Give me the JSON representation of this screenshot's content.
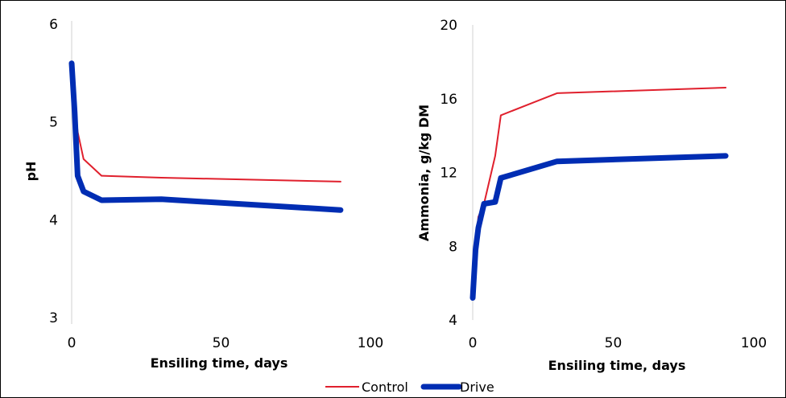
{
  "chart_data": [
    {
      "type": "line",
      "xlabel": "Ensiling time, days",
      "ylabel": "pH",
      "xlim": [
        0,
        100
      ],
      "ylim": [
        3,
        6
      ],
      "xticks": [
        0,
        50,
        100
      ],
      "yticks": [
        3,
        4,
        5,
        6
      ],
      "series": [
        {
          "name": "Control",
          "color": "#e0202d",
          "x": [
            0,
            1,
            2,
            4,
            10,
            30,
            90
          ],
          "y": [
            5.6,
            5.2,
            4.9,
            4.62,
            4.45,
            4.43,
            4.39
          ]
        },
        {
          "name": "Drive",
          "color": "#002db3",
          "x": [
            0,
            1,
            2,
            4,
            10,
            30,
            90
          ],
          "y": [
            5.6,
            5.1,
            4.45,
            4.29,
            4.2,
            4.21,
            4.1
          ]
        }
      ]
    },
    {
      "type": "line",
      "xlabel": "Ensiling time, days",
      "ylabel": "Ammonia, g/kg DM",
      "xlim": [
        0,
        100
      ],
      "ylim": [
        4,
        20
      ],
      "xticks": [
        0,
        50,
        100
      ],
      "yticks": [
        4,
        8,
        12,
        16,
        20
      ],
      "series": [
        {
          "name": "Control",
          "color": "#e0202d",
          "x": [
            0,
            1,
            2,
            4,
            8,
            10,
            30,
            90
          ],
          "y": [
            5.2,
            8.0,
            9.6,
            10.3,
            12.9,
            15.1,
            16.3,
            16.6
          ]
        },
        {
          "name": "Drive",
          "color": "#002db3",
          "x": [
            0,
            1,
            2,
            4,
            8,
            10,
            30,
            90
          ],
          "y": [
            5.2,
            7.8,
            9.0,
            10.3,
            10.4,
            11.7,
            12.6,
            12.9
          ]
        }
      ]
    }
  ],
  "legend": {
    "placement": "bottom-center",
    "items": [
      {
        "label": "Control",
        "color": "#e0202d"
      },
      {
        "label": "Drive",
        "color": "#002db3"
      }
    ]
  }
}
